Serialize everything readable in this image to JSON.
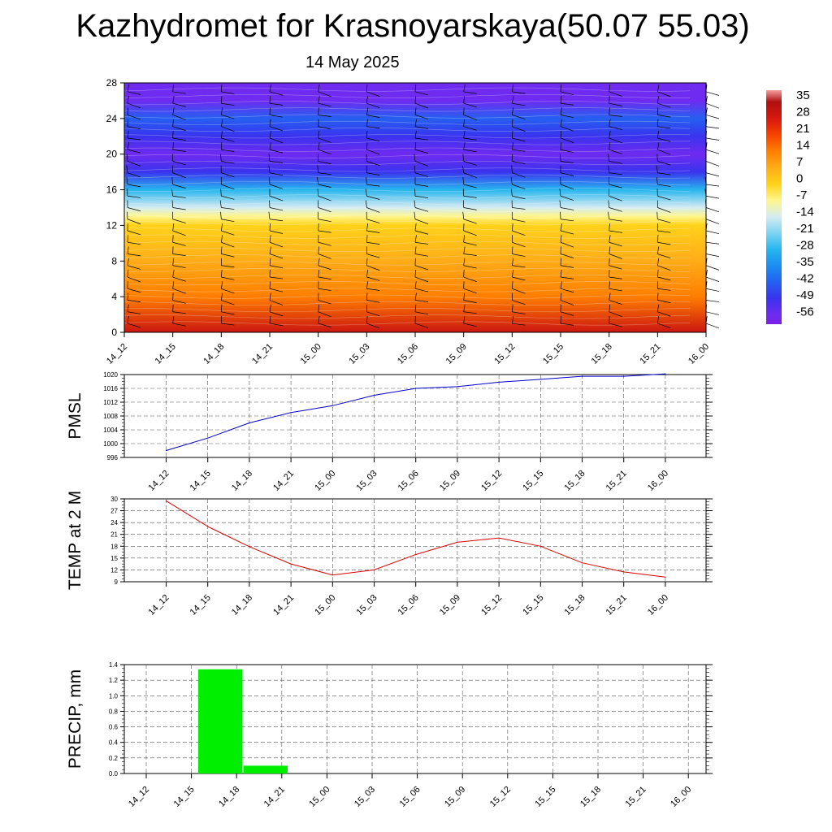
{
  "title": "Kazhydromet for Krasnoyarskaya(50.07 55.03)",
  "subtitle": "14 May 2025",
  "time_labels": [
    "14_12",
    "14_15",
    "14_18",
    "14_21",
    "15_00",
    "15_03",
    "15_06",
    "15_09",
    "15_12",
    "15_15",
    "15_18",
    "15_21",
    "16_00"
  ],
  "colors": {
    "pmsl_line": "#0000cc",
    "temp_line": "#dd0000",
    "precip_bar": "#00ee00"
  },
  "chart_data": [
    {
      "type": "heatmap",
      "title": "",
      "xlabel": "",
      "ylabel": "",
      "x": [
        "14_12",
        "14_15",
        "14_18",
        "14_21",
        "15_00",
        "15_03",
        "15_06",
        "15_09",
        "15_12",
        "15_15",
        "15_18",
        "15_21",
        "16_00"
      ],
      "y_ticks": [
        0,
        4,
        8,
        12,
        16,
        20,
        24,
        28
      ],
      "ylim": [
        0,
        28
      ],
      "temperature_by_level_c": [
        {
          "level": 0,
          "value": 30
        },
        {
          "level": 4,
          "value": 14
        },
        {
          "level": 8,
          "value": 7
        },
        {
          "level": 12,
          "value": 0
        },
        {
          "level": 13,
          "value": -7
        },
        {
          "level": 14,
          "value": -14
        },
        {
          "level": 16,
          "value": -28
        },
        {
          "level": 18,
          "value": -49
        },
        {
          "level": 20,
          "value": -56
        },
        {
          "level": 22,
          "value": -49
        },
        {
          "level": 24,
          "value": -42
        },
        {
          "level": 26,
          "value": -56
        },
        {
          "level": 28,
          "value": -56
        }
      ],
      "wind_barbs": true,
      "colorbar": {
        "labels": [
          "35",
          "28",
          "21",
          "14",
          "7",
          "0",
          "-7",
          "-14",
          "-21",
          "-28",
          "-35",
          "-42",
          "-49",
          "-56"
        ],
        "placement": "right"
      }
    },
    {
      "type": "line",
      "title": "",
      "ylabel": "PMSL",
      "x": [
        "14_12",
        "14_15",
        "14_18",
        "14_21",
        "15_00",
        "15_03",
        "15_06",
        "15_09",
        "15_12",
        "15_15",
        "15_18",
        "15_21",
        "16_00"
      ],
      "series": [
        {
          "values": [
            998,
            1001.6,
            1006,
            1009,
            1011,
            1014,
            1016,
            1016.5,
            1017.8,
            1018.6,
            1019.5,
            1019.5,
            1020.2
          ]
        }
      ],
      "ylim": [
        996,
        1020
      ],
      "y_ticks": [
        996,
        1000,
        1004,
        1008,
        1012,
        1016,
        1020
      ],
      "grid": true
    },
    {
      "type": "line",
      "title": "",
      "ylabel": "TEMP at 2 M",
      "x": [
        "14_12",
        "14_15",
        "14_18",
        "14_21",
        "15_00",
        "15_03",
        "15_06",
        "15_09",
        "15_12",
        "15_15",
        "15_18",
        "15_21",
        "16_00"
      ],
      "series": [
        {
          "values": [
            29.5,
            23,
            17.9,
            13.5,
            10.7,
            12,
            15.9,
            19,
            20.1,
            18,
            13.8,
            11.5,
            10.2
          ]
        }
      ],
      "ylim": [
        9,
        30
      ],
      "y_ticks": [
        9,
        12,
        15,
        18,
        21,
        24,
        27,
        30
      ],
      "grid": true
    },
    {
      "type": "bar",
      "title": "",
      "ylabel": "PRECIP, mm",
      "categories": [
        "14_12",
        "14_15",
        "14_18",
        "14_21",
        "15_00",
        "15_03",
        "15_06",
        "15_09",
        "15_12",
        "15_15",
        "15_18",
        "15_21",
        "16_00"
      ],
      "values": [
        0,
        1.34,
        0.1,
        0,
        0,
        0,
        0,
        0,
        0,
        0,
        0,
        0,
        0
      ],
      "ylim": [
        0,
        1.4
      ],
      "y_ticks": [
        "0.0",
        "0.2",
        "0.4",
        "0.6",
        "0.8",
        "1.0",
        "1.2",
        "1.4"
      ],
      "grid": true
    }
  ]
}
